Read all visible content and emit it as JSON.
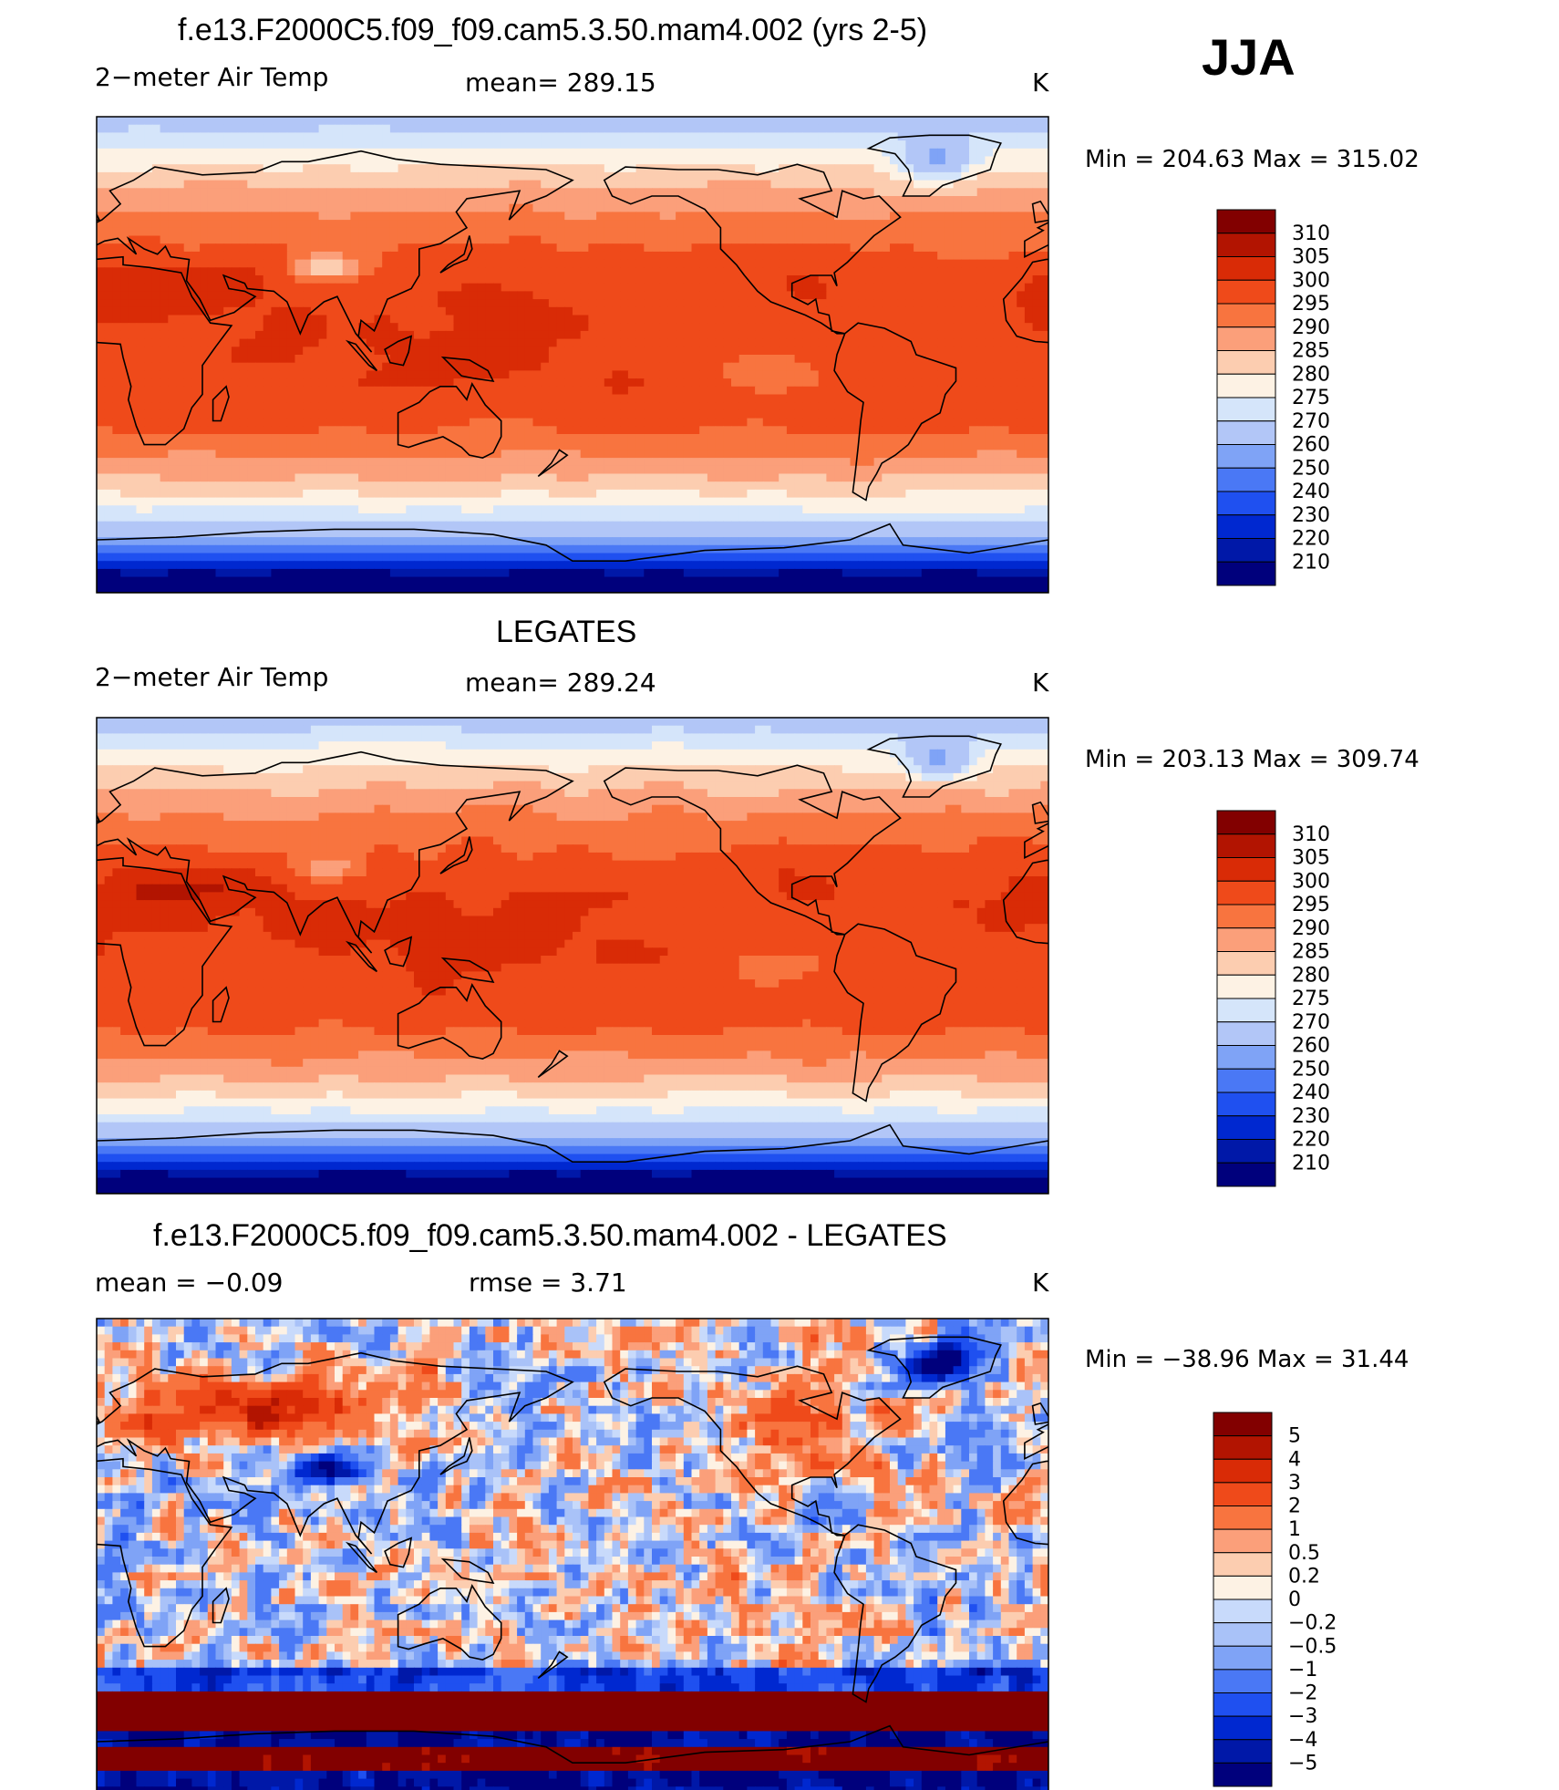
{
  "season": "JJA",
  "colors": {
    "temp_scale": [
      "#00007c",
      "#0018a8",
      "#0028d0",
      "#1f50f0",
      "#4a78f5",
      "#7fa3f6",
      "#b2c6f7",
      "#d5e5fa",
      "#fdf2e4",
      "#fccdb0",
      "#fb9f7a",
      "#f8743f",
      "#ef4a1a",
      "#d92b06",
      "#b21401",
      "#820000"
    ],
    "diff_scale": [
      "#00007c",
      "#0018a8",
      "#0028d0",
      "#1f50f0",
      "#4a78f5",
      "#7fa3f6",
      "#a9c2f8",
      "#c8dafb",
      "#e2ecfa",
      "#fdf2e4",
      "#fccdb0",
      "#fb9f7a",
      "#f8743f",
      "#ef4a1a",
      "#d92b06",
      "#b21401",
      "#820000"
    ],
    "land_line": "#000000"
  },
  "panels": [
    {
      "title": "f.e13.F2000C5.f09_f09.cam5.3.50.mam4.002 (yrs 2-5)",
      "left_label": "2−meter Air Temp",
      "mid_label": "mean=  289.15",
      "units": "K",
      "minmax": "Min  =  204.63  Max  =  315.02"
    },
    {
      "title": "LEGATES",
      "left_label": "2−meter Air Temp",
      "mid_label": "mean=  289.24",
      "units": "K",
      "minmax": "Min  =  203.13  Max  =  309.74"
    },
    {
      "title": "f.e13.F2000C5.f09_f09.cam5.3.50.mam4.002 - LEGATES",
      "left_label": "mean  =     −0.09",
      "mid_label": "rmse  =      3.71",
      "units": "K",
      "minmax": "Min  =  −38.96  Max  =     31.44"
    }
  ],
  "chart_data": [
    {
      "type": "heatmap",
      "title": "f.e13.F2000C5.f09_f09.cam5.3.50.mam4.002 (yrs 2-5)",
      "variable": "2−meter Air Temp",
      "units": "K",
      "mean": 289.15,
      "min": 204.63,
      "max": 315.02,
      "colorbar_levels": [
        "310",
        "305",
        "300",
        "295",
        "290",
        "285",
        "280",
        "275",
        "270",
        "260",
        "250",
        "240",
        "230",
        "220",
        "210"
      ]
    },
    {
      "type": "heatmap",
      "title": "LEGATES",
      "variable": "2−meter Air Temp",
      "units": "K",
      "mean": 289.24,
      "min": 203.13,
      "max": 309.74,
      "colorbar_levels": [
        "310",
        "305",
        "300",
        "295",
        "290",
        "285",
        "280",
        "275",
        "270",
        "260",
        "250",
        "240",
        "230",
        "220",
        "210"
      ]
    },
    {
      "type": "heatmap",
      "title": "f.e13.F2000C5.f09_f09.cam5.3.50.mam4.002 - LEGATES",
      "units": "K",
      "mean": -0.09,
      "rmse": 3.71,
      "min": -38.96,
      "max": 31.44,
      "colorbar_levels": [
        "5",
        "4",
        "3",
        "2",
        "1",
        "0.5",
        "0.2",
        "0",
        "−0.2",
        "−0.5",
        "−1",
        "−2",
        "−3",
        "−4",
        "−5"
      ]
    }
  ]
}
